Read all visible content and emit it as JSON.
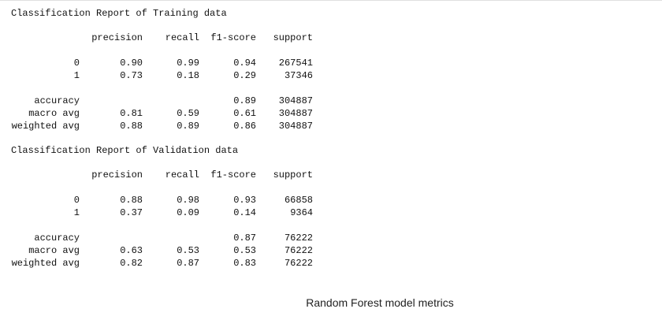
{
  "reports": [
    {
      "title": "Classification Report of Training data",
      "columns": [
        "precision",
        "recall",
        "f1-score",
        "support"
      ],
      "rows": [
        {
          "label": "0",
          "cells": [
            "0.90",
            "0.99",
            "0.94",
            "267541"
          ]
        },
        {
          "label": "1",
          "cells": [
            "0.73",
            "0.18",
            "0.29",
            "37346"
          ]
        },
        {
          "label": "accuracy",
          "cells": [
            null,
            null,
            "0.89",
            "304887"
          ]
        },
        {
          "label": "macro avg",
          "cells": [
            "0.81",
            "0.59",
            "0.61",
            "304887"
          ]
        },
        {
          "label": "weighted avg",
          "cells": [
            "0.88",
            "0.89",
            "0.86",
            "304887"
          ]
        }
      ]
    },
    {
      "title": "Classification Report of Validation data",
      "columns": [
        "precision",
        "recall",
        "f1-score",
        "support"
      ],
      "rows": [
        {
          "label": "0",
          "cells": [
            "0.88",
            "0.98",
            "0.93",
            "66858"
          ]
        },
        {
          "label": "1",
          "cells": [
            "0.37",
            "0.09",
            "0.14",
            "9364"
          ]
        },
        {
          "label": "accuracy",
          "cells": [
            null,
            null,
            "0.87",
            "76222"
          ]
        },
        {
          "label": "macro avg",
          "cells": [
            "0.63",
            "0.53",
            "0.53",
            "76222"
          ]
        },
        {
          "label": "weighted avg",
          "cells": [
            "0.82",
            "0.87",
            "0.83",
            "76222"
          ]
        }
      ]
    }
  ],
  "caption": "Random Forest model metrics"
}
